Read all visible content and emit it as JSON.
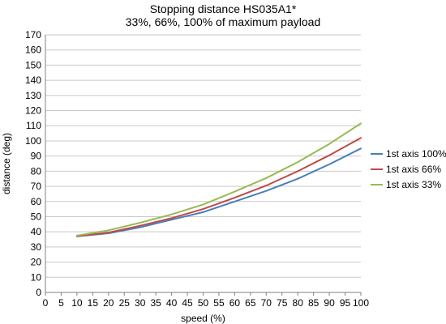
{
  "chart_data": {
    "type": "line",
    "title": "Stopping distance HS035A1*",
    "subtitle": "33%, 66%, 100% of maximum payload",
    "xlabel": "speed (%)",
    "ylabel": "distance (deg)",
    "xlim": [
      0,
      100
    ],
    "ylim": [
      0,
      170
    ],
    "xticks": [
      0,
      5,
      10,
      15,
      20,
      25,
      30,
      35,
      40,
      45,
      50,
      55,
      60,
      65,
      70,
      75,
      80,
      85,
      90,
      95,
      100
    ],
    "yticks": [
      0,
      10,
      20,
      30,
      40,
      50,
      60,
      70,
      80,
      90,
      100,
      110,
      120,
      130,
      140,
      150,
      160,
      170
    ],
    "grid": "horizontal",
    "legend_position": "right",
    "x": [
      10,
      20,
      30,
      40,
      50,
      60,
      70,
      80,
      90,
      100
    ],
    "series": [
      {
        "name": "1st axis 100%",
        "color": "#4A7EBB",
        "values": [
          37,
          39,
          43,
          48,
          53,
          60,
          67,
          75,
          84.5,
          95
        ]
      },
      {
        "name": "1st axis 66%",
        "color": "#BE4B48",
        "values": [
          37,
          39.5,
          44,
          49,
          55,
          62.5,
          70.5,
          80,
          90.5,
          102
        ]
      },
      {
        "name": "1st axis 33%",
        "color": "#98B954",
        "values": [
          37.5,
          41,
          46,
          51.5,
          58,
          66.5,
          75.5,
          86,
          98,
          111.5
        ]
      }
    ]
  }
}
